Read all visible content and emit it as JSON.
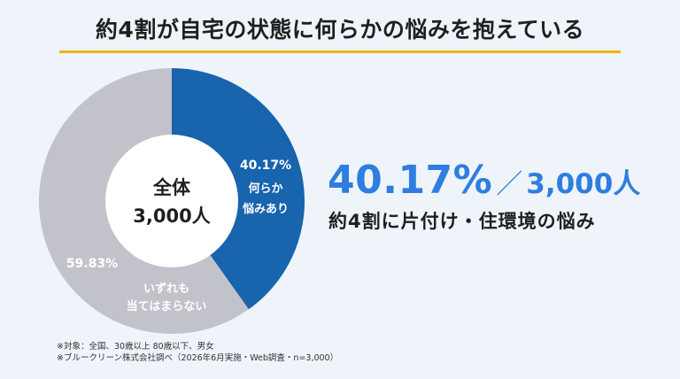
{
  "title": "約4割が自宅の状態に何らかの悩みを抱えている",
  "chart_data": {
    "type": "pie",
    "center_label_line1": "全体",
    "center_label_line2": "3,000人",
    "slices": [
      {
        "label_line1": "何らか",
        "label_line2": "悩みあり",
        "value": 40.17,
        "value_label": "40.17%",
        "color": "#1864ad"
      },
      {
        "label_line1": "いずれも",
        "label_line2": "当てはまらない",
        "value": 59.83,
        "value_label": "59.83%",
        "color": "#c2c3ca"
      }
    ]
  },
  "highlight": {
    "percent": "40.17%",
    "separator": "／",
    "count": "3,000人",
    "caption": "約4割に片付け・住環境の悩み"
  },
  "footnotes": [
    "※対象：全国、30歳以上 80歳以下、男女",
    "※ブルークリーン株式会社調べ（2026年6月実施・Web調査・n=3,000）"
  ]
}
